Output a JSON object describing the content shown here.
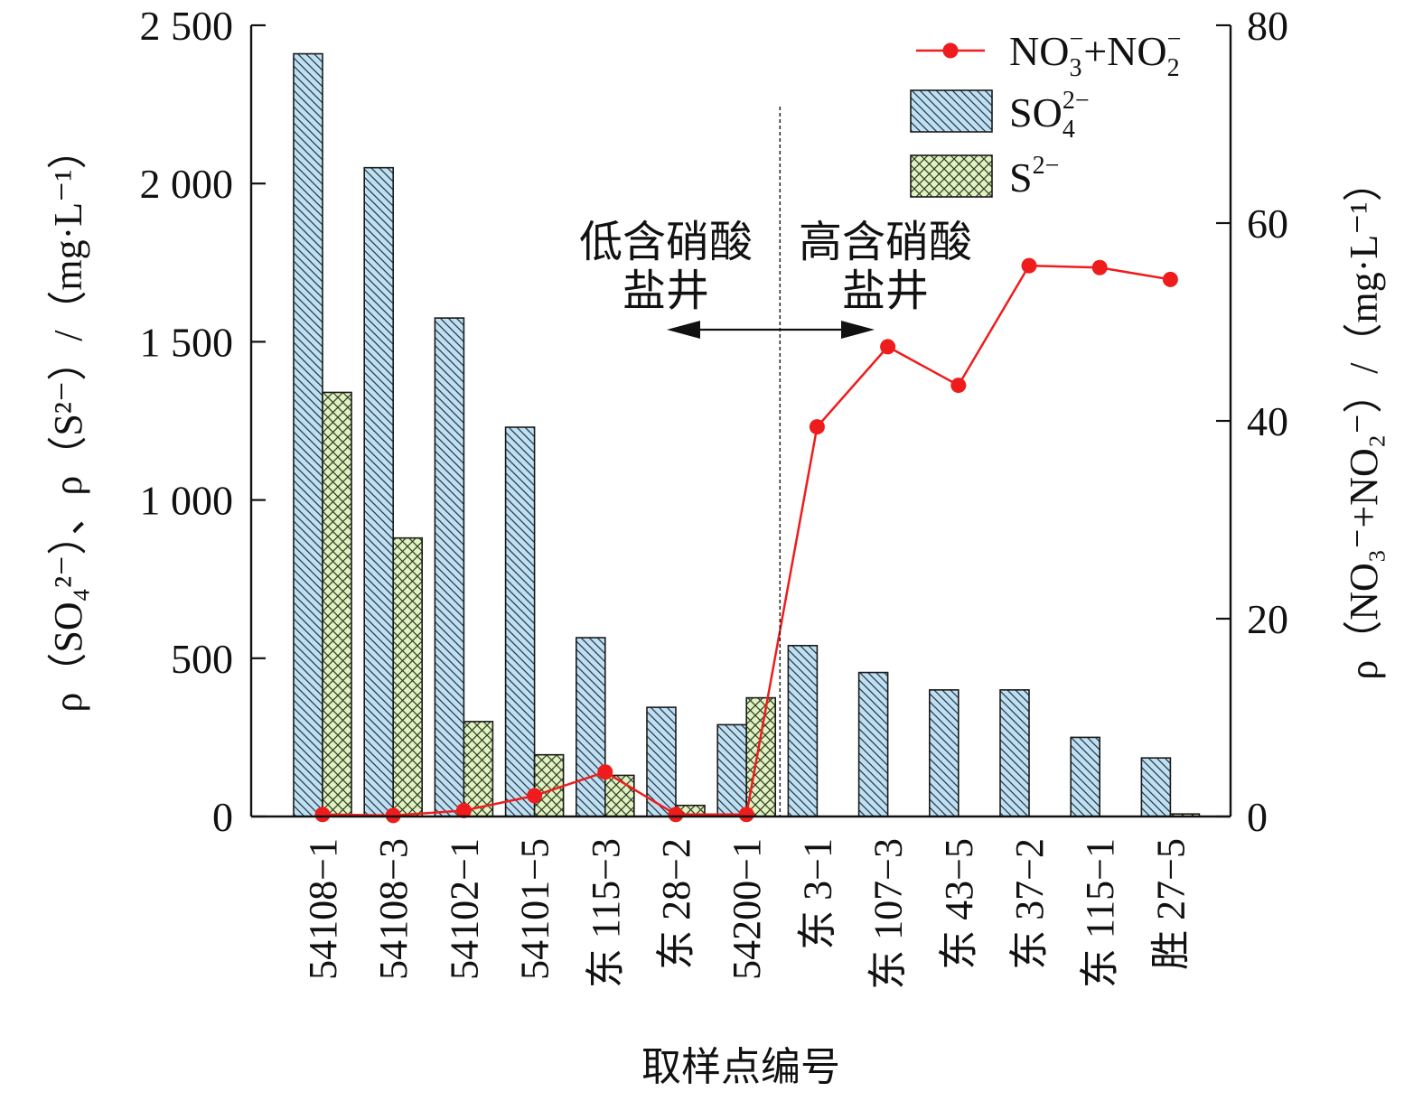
{
  "chart_data": {
    "type": "bar",
    "xlabel": "取样点编号",
    "ylabel_left": "ρ（SO₄²⁻）、ρ（S²⁻）/（mg·L⁻¹）",
    "ylabel_right": "ρ（NO₃⁻+NO₂⁻）/（mg·L⁻¹）",
    "categories": [
      "54108−1",
      "54108−3",
      "54102−1",
      "54101−5",
      "东 115−3",
      "东 28−2",
      "54200−1",
      "东 3−1",
      "东 107−3",
      "东 43−5",
      "东 37−2",
      "东 115−1",
      "胜 27−5"
    ],
    "ylim_left": [
      0,
      2500
    ],
    "yticks_left": [
      0,
      500,
      1000,
      1500,
      2000,
      2500
    ],
    "ytick_labels_left": [
      "0",
      "500",
      "1 000",
      "1 500",
      "2 000",
      "2 500"
    ],
    "ylim_right": [
      0,
      80
    ],
    "yticks_right": [
      0,
      20,
      40,
      60,
      80
    ],
    "ytick_labels_right": [
      "0",
      "20",
      "40",
      "60",
      "80"
    ],
    "series": [
      {
        "name": "SO₄²⁻",
        "kind": "bar",
        "axis": "left",
        "color": "#bfe0f2",
        "values": [
          2410,
          2050,
          1575,
          1230,
          565,
          345,
          290,
          540,
          455,
          400,
          400,
          250,
          185
        ]
      },
      {
        "name": "S²⁻",
        "kind": "bar",
        "axis": "left",
        "color": "#dff2bf",
        "values": [
          1340,
          880,
          300,
          195,
          130,
          35,
          375,
          0,
          0,
          0,
          0,
          0,
          8
        ]
      },
      {
        "name": "NO₃⁻+NO₂⁻",
        "kind": "line",
        "axis": "right",
        "color": "#ee1c1c",
        "values": [
          0.2,
          0.1,
          0.6,
          2.1,
          4.5,
          0.2,
          0.2,
          39.4,
          47.5,
          43.6,
          55.7,
          55.5,
          54.3
        ]
      }
    ],
    "legend_position": "top-right",
    "divider_after_index": 6,
    "annotations": {
      "left_line1": "低含硝酸",
      "left_line2": "盐井",
      "right_line1": "高含硝酸",
      "right_line2": "盐井"
    }
  }
}
